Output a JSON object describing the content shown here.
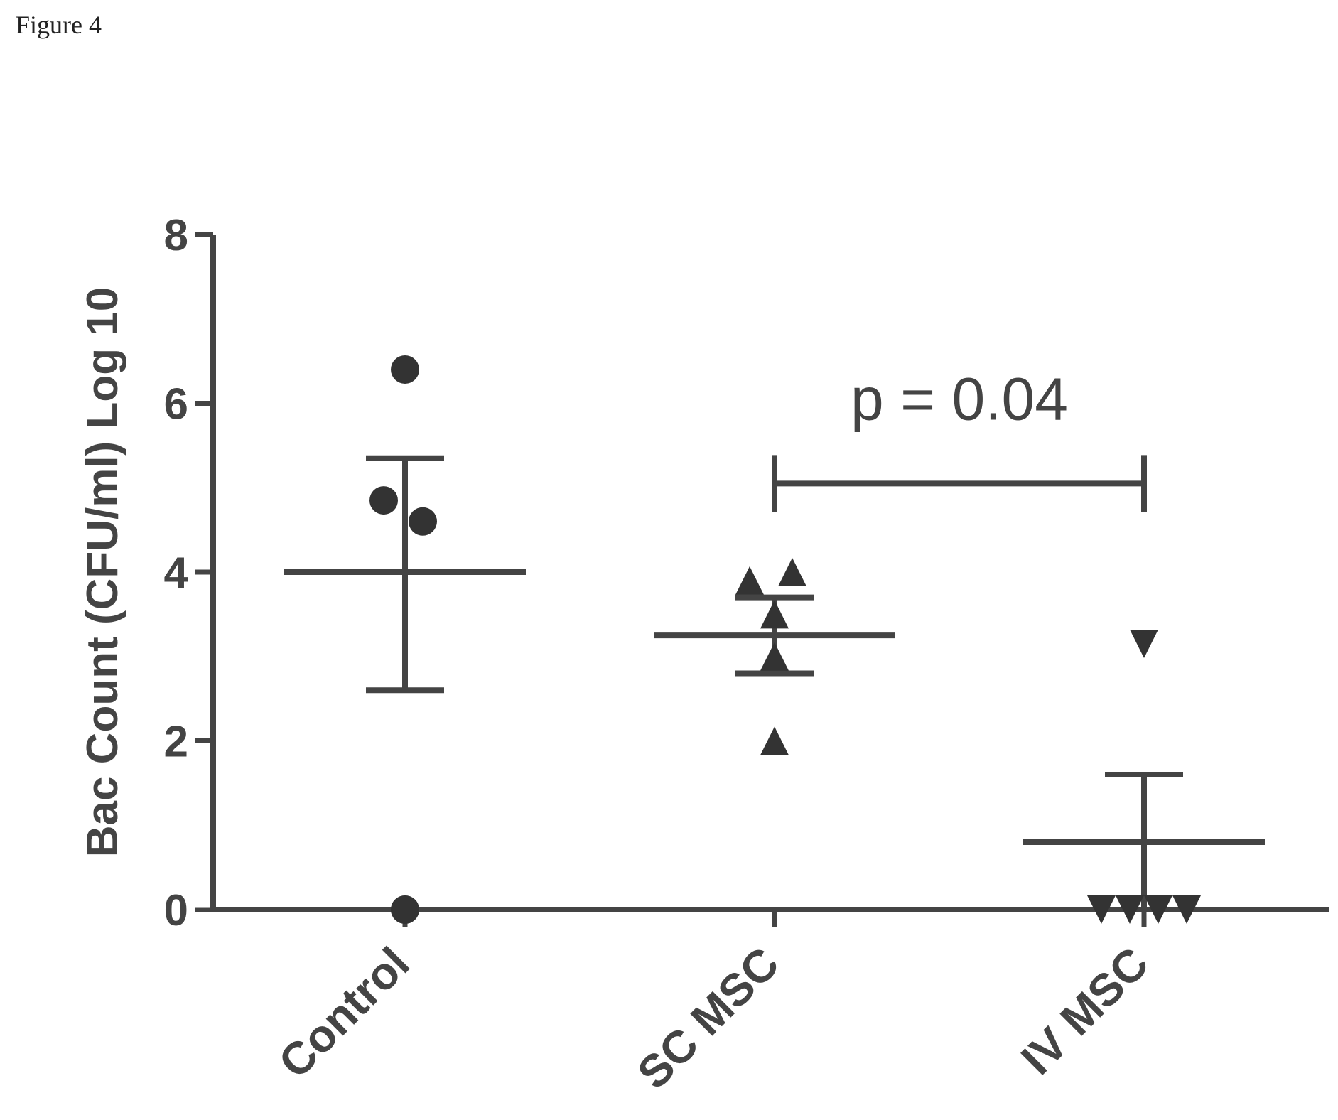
{
  "figure_label": "Figure 4",
  "chart_data": {
    "type": "scatter",
    "ylabel": "Bac Count (CFU/ml) Log 10",
    "ylim": [
      0,
      8
    ],
    "yticks": [
      0,
      2,
      4,
      6,
      8
    ],
    "categories": [
      "Control",
      "SC MSC",
      "IV MSC"
    ],
    "grid": false,
    "series": [
      {
        "category": "Control",
        "marker": "circle",
        "points": [
          6.4,
          4.85,
          4.6,
          0,
          0
        ],
        "mean": 4.0,
        "error_upper": 5.35,
        "error_lower": 2.6
      },
      {
        "category": "SC MSC",
        "marker": "triangle-up",
        "points": [
          3.9,
          4.0,
          3.5,
          3.0,
          2.0
        ],
        "mean": 3.25,
        "error_upper": 3.7,
        "error_lower": 2.8
      },
      {
        "category": "IV MSC",
        "marker": "triangle-down",
        "points": [
          3.15,
          0,
          0,
          0,
          0
        ],
        "mean": 0.8,
        "error_upper": 1.6,
        "error_lower": 0
      }
    ],
    "annotations": [
      {
        "text": "p = 0.04",
        "from": "SC MSC",
        "to": "IV MSC",
        "y": 5.05
      }
    ]
  }
}
